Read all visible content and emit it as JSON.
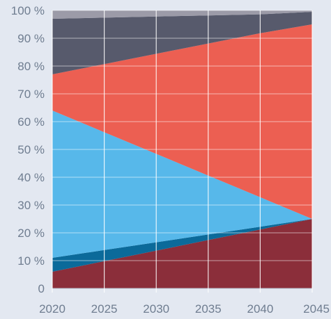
{
  "chart_data": {
    "type": "area",
    "stacked": true,
    "x": [
      2020,
      2025,
      2030,
      2035,
      2040,
      2045
    ],
    "x_tick_labels": [
      "2020",
      "2025",
      "2030",
      "2035",
      "2040",
      "2045"
    ],
    "y_tick_labels": [
      "0",
      "10 %",
      "20 %",
      "30 %",
      "40 %",
      "50 %",
      "60 %",
      "70 %",
      "80 %",
      "90 %",
      "100 %"
    ],
    "ylim": [
      0,
      100
    ],
    "xlim": [
      2020,
      2045
    ],
    "grid": true,
    "legend": "none",
    "series": [
      {
        "color": "#8b2e3a",
        "values": [
          6,
          9.8,
          13.6,
          17.4,
          21.2,
          25
        ]
      },
      {
        "color": "#0b6a9a",
        "values": [
          5,
          4,
          3,
          2,
          1,
          0
        ]
      },
      {
        "color": "#57b8ea",
        "values": [
          53,
          42.4,
          31.8,
          21.2,
          10.6,
          0
        ]
      },
      {
        "color": "#ec5f52",
        "values": [
          13,
          24.5,
          36,
          47.5,
          59,
          70
        ]
      },
      {
        "color": "#575a6c",
        "values": [
          20,
          16.7,
          13.4,
          10.1,
          6.8,
          4.5
        ]
      },
      {
        "color": "#9c9ba8",
        "values": [
          3,
          2.6,
          2.2,
          1.8,
          1.4,
          0.5
        ]
      }
    ]
  }
}
